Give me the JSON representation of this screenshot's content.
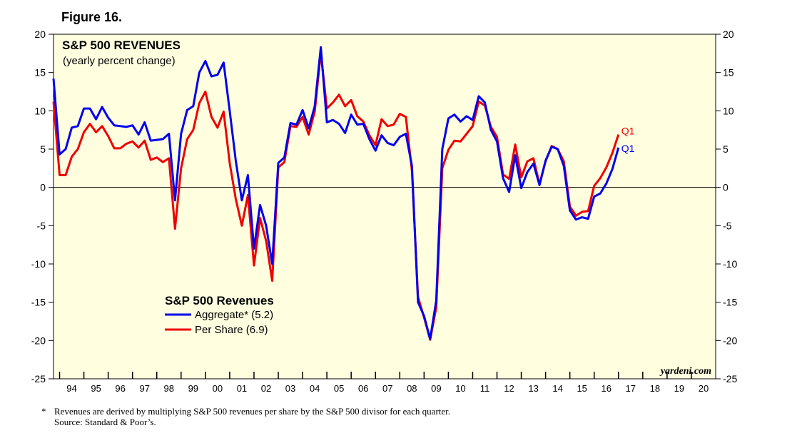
{
  "figure_label": "Figure 16.",
  "footnote": {
    "marker": "*",
    "note": "Revenues are derived by multiplying S&P 500 revenues per share by the S&P 500 divisor for each quarter.",
    "source": "Source: Standard & Poor’s."
  },
  "chart_data": {
    "type": "line",
    "title": "S&P 500 REVENUES",
    "subtitle": "(yearly percent change)",
    "watermark": "yardeni.com",
    "ylim": [
      -25,
      20
    ],
    "yticks": [
      20,
      15,
      10,
      5,
      0,
      -5,
      -10,
      -15,
      -20,
      -25
    ],
    "ytick_labels_left": [
      "20",
      "15",
      "10",
      "5",
      "0",
      "-5",
      "-10",
      "-15",
      "-20",
      "-25"
    ],
    "ytick_labels_right": [
      "20",
      "15",
      "10",
      "5",
      "0",
      "-5",
      "-10",
      "-15",
      "-20",
      "-25"
    ],
    "xlim": [
      1993.75,
      2021
    ],
    "x_tick_labels": [
      "94",
      "95",
      "96",
      "97",
      "98",
      "99",
      "00",
      "01",
      "02",
      "03",
      "04",
      "05",
      "06",
      "07",
      "08",
      "09",
      "10",
      "11",
      "12",
      "13",
      "14",
      "15",
      "16",
      "17",
      "18",
      "19",
      "20"
    ],
    "legend": {
      "title": "S&P 500 Revenues",
      "items": [
        {
          "label": "Aggregate* (5.2)",
          "color": "#0000ee"
        },
        {
          "label": "Per Share (6.9)",
          "color": "#ee0000"
        }
      ]
    },
    "series": [
      {
        "name": "Aggregate",
        "color": "#0000ee",
        "end_label": "Q1",
        "x_start": 1993.75,
        "x_step": 0.25,
        "values": [
          14.2,
          4.3,
          5.0,
          7.8,
          8.0,
          10.3,
          10.3,
          8.9,
          10.5,
          9.1,
          8.1,
          8.0,
          7.9,
          8.1,
          6.9,
          8.5,
          6.1,
          6.2,
          6.3,
          7.0,
          -1.7,
          7.0,
          10.1,
          10.6,
          15.0,
          16.5,
          14.5,
          14.7,
          16.3,
          10.0,
          3.5,
          -1.7,
          1.6,
          -8.0,
          -2.3,
          -5.0,
          -10.0,
          3.2,
          3.9,
          8.4,
          8.2,
          10.1,
          7.7,
          10.6,
          18.3,
          8.5,
          8.8,
          8.3,
          7.1,
          9.5,
          8.2,
          8.3,
          6.3,
          4.8,
          6.8,
          5.8,
          5.5,
          6.6,
          7.0,
          2.8,
          -15.0,
          -16.8,
          -19.8,
          -14.8,
          5.0,
          9.0,
          9.5,
          8.6,
          9.3,
          8.8,
          11.9,
          11.1,
          7.5,
          6.0,
          1.2,
          -0.6,
          4.2,
          -0.1,
          2.0,
          3.1,
          0.3,
          3.5,
          5.3,
          5.0,
          2.8,
          -3.0,
          -4.2,
          -3.9,
          -4.1,
          -1.2,
          -0.8,
          0.5,
          2.4,
          5.2
        ]
      },
      {
        "name": "Per Share",
        "color": "#ee0000",
        "end_label": "Q1",
        "x_start": 1993.75,
        "x_step": 0.25,
        "values": [
          11.2,
          1.6,
          1.6,
          4.0,
          5.0,
          7.2,
          8.3,
          7.2,
          8.0,
          6.7,
          5.1,
          5.1,
          5.7,
          6.0,
          5.2,
          6.1,
          3.6,
          3.9,
          3.3,
          3.8,
          -5.4,
          2.5,
          6.3,
          7.5,
          11.0,
          12.5,
          9.2,
          7.8,
          9.9,
          3.2,
          -1.5,
          -5.0,
          -1.0,
          -10.2,
          -4.0,
          -7.0,
          -12.2,
          2.6,
          3.3,
          8.0,
          7.9,
          9.2,
          6.9,
          9.9,
          17.6,
          10.3,
          11.1,
          12.1,
          10.6,
          11.4,
          9.3,
          8.6,
          6.8,
          5.5,
          8.9,
          8.0,
          8.2,
          9.6,
          9.2,
          2.2,
          -14.3,
          -17.0,
          -19.9,
          -15.7,
          2.5,
          4.9,
          6.1,
          6.0,
          7.0,
          8.0,
          11.2,
          10.7,
          7.9,
          6.6,
          1.7,
          1.1,
          5.6,
          1.3,
          3.4,
          3.8,
          0.4,
          3.4,
          5.4,
          5.0,
          3.4,
          -2.5,
          -3.7,
          -3.2,
          -3.1,
          0.2,
          1.2,
          2.6,
          4.5,
          6.9
        ]
      }
    ]
  }
}
